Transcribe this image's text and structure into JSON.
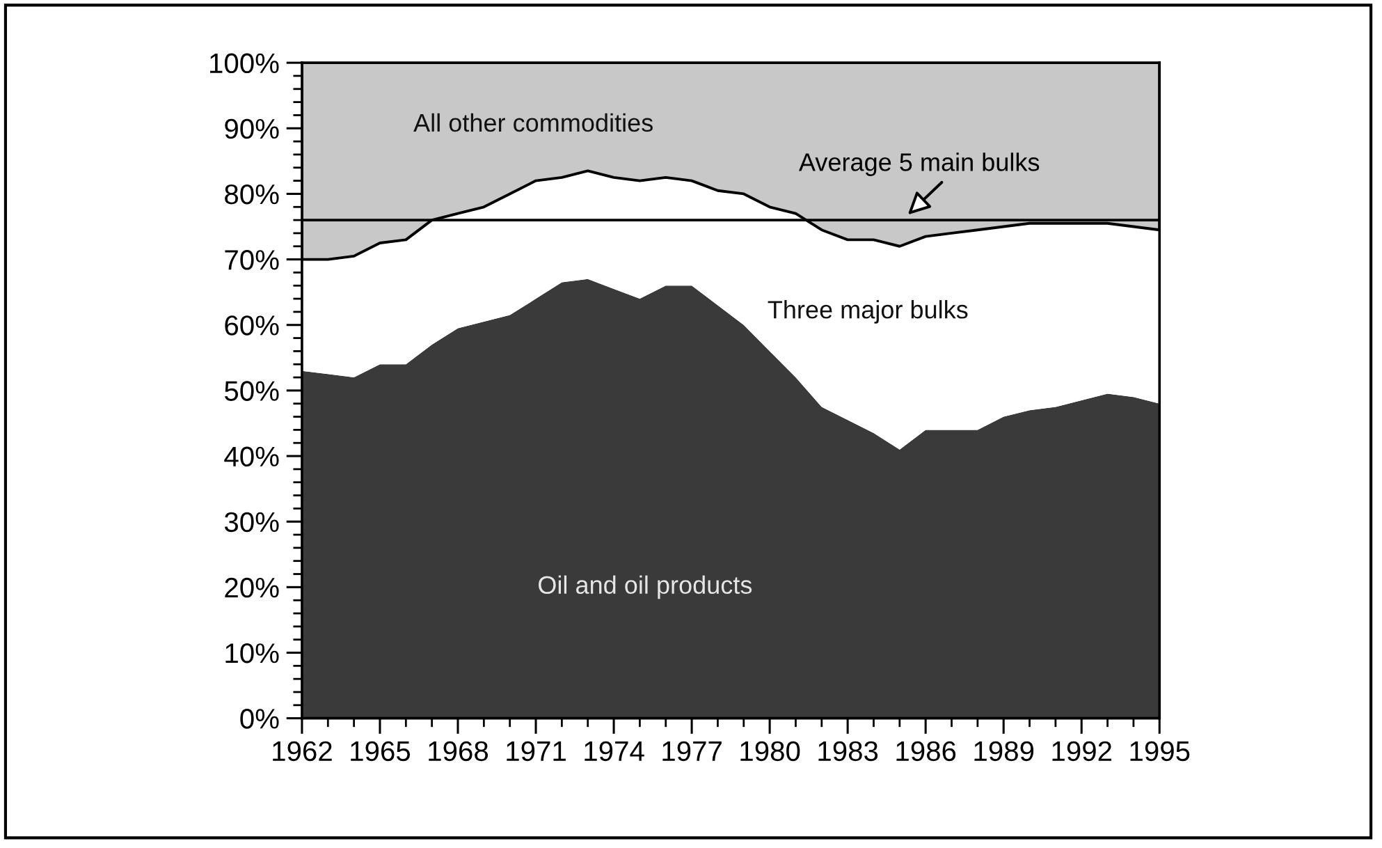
{
  "chart_data": {
    "type": "area",
    "stacked": true,
    "x": [
      1962,
      1963,
      1964,
      1965,
      1966,
      1967,
      1968,
      1969,
      1970,
      1971,
      1972,
      1973,
      1974,
      1975,
      1976,
      1977,
      1978,
      1979,
      1980,
      1981,
      1982,
      1983,
      1984,
      1985,
      1986,
      1987,
      1988,
      1989,
      1990,
      1991,
      1992,
      1993,
      1994,
      1995
    ],
    "series": [
      {
        "name": "Oil and oil products",
        "color": "#3a3a3a",
        "values": [
          53,
          52.5,
          52,
          54,
          54,
          57,
          59.5,
          60.5,
          61.5,
          64,
          66.5,
          67,
          65.5,
          64,
          66,
          66,
          63,
          60,
          56,
          52,
          47.5,
          45.5,
          43.5,
          41,
          44,
          44,
          44,
          46,
          47,
          47.5,
          48.5,
          49.5,
          49,
          48
        ]
      },
      {
        "name": "Three major bulks",
        "color": "#ffffff",
        "values": [
          17,
          17.5,
          18.5,
          18.5,
          19,
          19,
          17.5,
          17.5,
          18.5,
          18,
          16,
          16.5,
          17,
          18,
          16.5,
          16,
          17.5,
          20,
          22,
          25,
          27,
          27.5,
          29.5,
          31,
          29.5,
          30,
          30.5,
          29,
          28.5,
          28,
          27,
          26,
          26,
          26.5
        ]
      },
      {
        "name": "All other commodities",
        "color": "#c8c8c8",
        "values": [
          30,
          30,
          29.5,
          27.5,
          27,
          24,
          23,
          22,
          20,
          18,
          17.5,
          16.5,
          17.5,
          18,
          17.5,
          18,
          19.5,
          20,
          22,
          23,
          25.5,
          27,
          27,
          28,
          26.5,
          26,
          25.5,
          25,
          24.5,
          24.5,
          24.5,
          24.5,
          25,
          25.5
        ]
      }
    ],
    "xlim": [
      1962,
      1995
    ],
    "xticks": [
      1962,
      {
        "value": 1963,
        "label": null
      },
      {
        "value": 1964,
        "label": null
      },
      1965,
      {
        "value": 1966,
        "label": null
      },
      {
        "value": 1967,
        "label": null
      },
      1968,
      {
        "value": 1969,
        "label": null
      },
      {
        "value": 1970,
        "label": null
      },
      1971,
      {
        "value": 1972,
        "label": null
      },
      {
        "value": 1973,
        "label": null
      },
      1974,
      {
        "value": 1975,
        "label": null
      },
      {
        "value": 1976,
        "label": null
      },
      1977,
      {
        "value": 1978,
        "label": null
      },
      {
        "value": 1979,
        "label": null
      },
      1980,
      {
        "value": 1981,
        "label": null
      },
      {
        "value": 1982,
        "label": null
      },
      1983,
      {
        "value": 1984,
        "label": null
      },
      {
        "value": 1985,
        "label": null
      },
      1986,
      {
        "value": 1987,
        "label": null
      },
      {
        "value": 1988,
        "label": null
      },
      1989,
      {
        "value": 1990,
        "label": null
      },
      {
        "value": 1991,
        "label": null
      },
      1992,
      {
        "value": 1993,
        "label": null
      },
      {
        "value": 1994,
        "label": null
      },
      1995
    ],
    "ylim": [
      0,
      100
    ],
    "yticks": [
      {
        "value": 0,
        "label": "0%"
      },
      {
        "value": 2,
        "label": null
      },
      {
        "value": 4,
        "label": null
      },
      {
        "value": 6,
        "label": null
      },
      {
        "value": 8,
        "label": null
      },
      {
        "value": 10,
        "label": "10%"
      },
      {
        "value": 12,
        "label": null
      },
      {
        "value": 14,
        "label": null
      },
      {
        "value": 16,
        "label": null
      },
      {
        "value": 18,
        "label": null
      },
      {
        "value": 20,
        "label": "20%"
      },
      {
        "value": 22,
        "label": null
      },
      {
        "value": 24,
        "label": null
      },
      {
        "value": 26,
        "label": null
      },
      {
        "value": 28,
        "label": null
      },
      {
        "value": 30,
        "label": "30%"
      },
      {
        "value": 32,
        "label": null
      },
      {
        "value": 34,
        "label": null
      },
      {
        "value": 36,
        "label": null
      },
      {
        "value": 38,
        "label": null
      },
      {
        "value": 40,
        "label": "40%"
      },
      {
        "value": 42,
        "label": null
      },
      {
        "value": 44,
        "label": null
      },
      {
        "value": 46,
        "label": null
      },
      {
        "value": 48,
        "label": null
      },
      {
        "value": 50,
        "label": "50%"
      },
      {
        "value": 52,
        "label": null
      },
      {
        "value": 54,
        "label": null
      },
      {
        "value": 56,
        "label": null
      },
      {
        "value": 58,
        "label": null
      },
      {
        "value": 60,
        "label": "60%"
      },
      {
        "value": 62,
        "label": null
      },
      {
        "value": 64,
        "label": null
      },
      {
        "value": 66,
        "label": null
      },
      {
        "value": 68,
        "label": null
      },
      {
        "value": 70,
        "label": "70%"
      },
      {
        "value": 72,
        "label": null
      },
      {
        "value": 74,
        "label": null
      },
      {
        "value": 76,
        "label": null
      },
      {
        "value": 78,
        "label": null
      },
      {
        "value": 80,
        "label": "80%"
      },
      {
        "value": 82,
        "label": null
      },
      {
        "value": 84,
        "label": null
      },
      {
        "value": 86,
        "label": null
      },
      {
        "value": 88,
        "label": null
      },
      {
        "value": 90,
        "label": "90%"
      },
      {
        "value": 92,
        "label": null
      },
      {
        "value": 94,
        "label": null
      },
      {
        "value": 96,
        "label": null
      },
      {
        "value": 98,
        "label": null
      },
      {
        "value": 100,
        "label": "100%"
      }
    ],
    "ref_lines": [
      {
        "axis": "y",
        "value": 76,
        "label": "Average 5 main bulks",
        "color": "#000000"
      }
    ]
  }
}
